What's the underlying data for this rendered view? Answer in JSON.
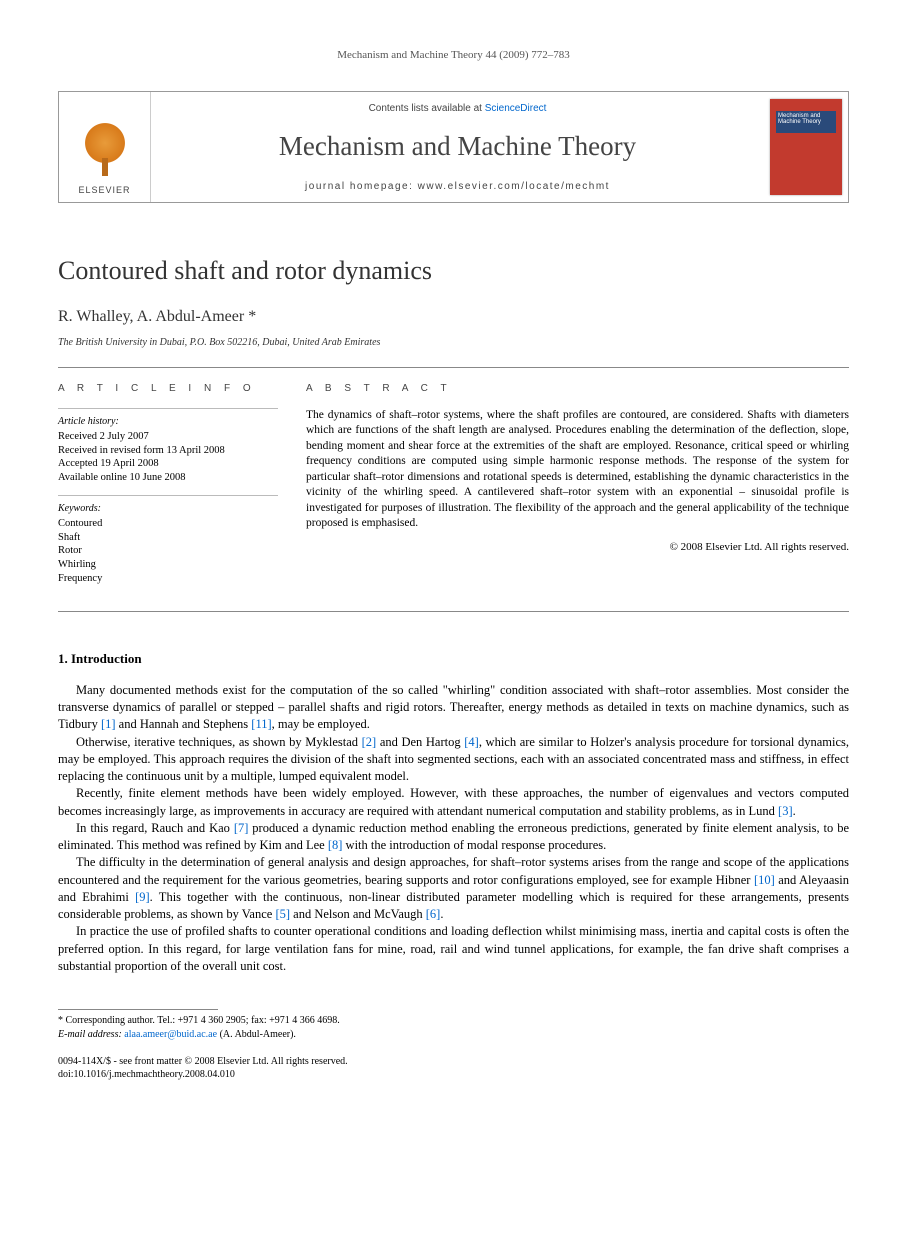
{
  "runningHeader": "Mechanism and Machine Theory 44 (2009) 772–783",
  "banner": {
    "publisher": "ELSEVIER",
    "contentsPrefix": "Contents lists available at ",
    "contentsLink": "ScienceDirect",
    "journalName": "Mechanism and Machine Theory",
    "homepagePrefix": "journal homepage: ",
    "homepageUrl": "www.elsevier.com/locate/mechmt",
    "coverTitle": "Mechanism and Machine Theory"
  },
  "article": {
    "title": "Contoured shaft and rotor dynamics",
    "authors": "R. Whalley, A. Abdul-Ameer *",
    "affiliation": "The British University in Dubai, P.O. Box 502216, Dubai, United Arab Emirates"
  },
  "info": {
    "label": "A R T I C L E   I N F O",
    "historyHeading": "Article history:",
    "history": [
      "Received 2 July 2007",
      "Received in revised form 13 April 2008",
      "Accepted 19 April 2008",
      "Available online 10 June 2008"
    ],
    "keywordsHeading": "Keywords:",
    "keywords": [
      "Contoured",
      "Shaft",
      "Rotor",
      "Whirling",
      "Frequency"
    ]
  },
  "abstract": {
    "label": "A B S T R A C T",
    "text": "The dynamics of shaft–rotor systems, where the shaft profiles are contoured, are considered. Shafts with diameters which are functions of the shaft length are analysed. Procedures enabling the determination of the deflection, slope, bending moment and shear force at the extremities of the shaft are employed. Resonance, critical speed or whirling frequency conditions are computed using simple harmonic response methods. The response of the system for particular shaft–rotor dimensions and rotational speeds is determined, establishing the dynamic characteristics in the vicinity of the whirling speed. A cantilevered shaft–rotor system with an exponential – sinusoidal profile is investigated for purposes of illustration. The flexibility of the approach and the general applicability of the technique proposed is emphasised.",
    "copyright": "© 2008 Elsevier Ltd. All rights reserved."
  },
  "section1": {
    "heading": "1. Introduction",
    "p1a": "Many documented methods exist for the computation of the so called \"whirling\" condition associated with shaft–rotor assemblies. Most consider the transverse dynamics of parallel or stepped – parallel shafts and rigid rotors. Thereafter, energy methods as detailed in texts on machine dynamics, such as Tidbury ",
    "p1r1": "[1]",
    "p1b": " and Hannah and Stephens ",
    "p1r2": "[11]",
    "p1c": ", may be employed.",
    "p2a": "Otherwise, iterative techniques, as shown by Myklestad ",
    "p2r1": "[2]",
    "p2b": " and Den Hartog ",
    "p2r2": "[4]",
    "p2c": ", which are similar to Holzer's analysis procedure for torsional dynamics, may be employed. This approach requires the division of the shaft into segmented sections, each with an associated concentrated mass and stiffness, in effect replacing the continuous unit by a multiple, lumped equivalent model.",
    "p3a": "Recently, finite element methods have been widely employed. However, with these approaches, the number of eigenvalues and vectors computed becomes increasingly large, as improvements in accuracy are required with attendant numerical computation and stability problems, as in Lund ",
    "p3r1": "[3]",
    "p3b": ".",
    "p4a": "In this regard, Rauch and Kao ",
    "p4r1": "[7]",
    "p4b": " produced a dynamic reduction method enabling the erroneous predictions, generated by finite element analysis, to be eliminated. This method was refined by Kim and Lee ",
    "p4r2": "[8]",
    "p4c": " with the introduction of modal response procedures.",
    "p5a": "The difficulty in the determination of general analysis and design approaches, for shaft–rotor systems arises from the range and scope of the applications encountered and the requirement for the various geometries, bearing supports and rotor configurations employed, see for example Hibner ",
    "p5r1": "[10]",
    "p5b": " and Aleyaasin and Ebrahimi ",
    "p5r2": "[9]",
    "p5c": ". This together with the continuous, non-linear distributed parameter modelling which is required for these arrangements, presents considerable problems, as shown by Vance ",
    "p5r3": "[5]",
    "p5d": " and Nelson and McVaugh ",
    "p5r4": "[6]",
    "p5e": ".",
    "p6": "In practice the use of profiled shafts to counter operational conditions and loading deflection whilst minimising mass, inertia and capital costs is often the preferred option. In this regard, for large ventilation fans for mine, road, rail and wind tunnel applications, for example, the fan drive shaft comprises a substantial proportion of the overall unit cost."
  },
  "footnote": {
    "corr": "* Corresponding author. Tel.: +971 4 360 2905; fax: +971 4 366 4698.",
    "emailLabel": "E-mail address: ",
    "email": "alaa.ameer@buid.ac.ae",
    "emailSuffix": " (A. Abdul-Ameer)."
  },
  "bottom": {
    "line1": "0094-114X/$ - see front matter © 2008 Elsevier Ltd. All rights reserved.",
    "line2": "doi:10.1016/j.mechmachtheory.2008.04.010"
  }
}
